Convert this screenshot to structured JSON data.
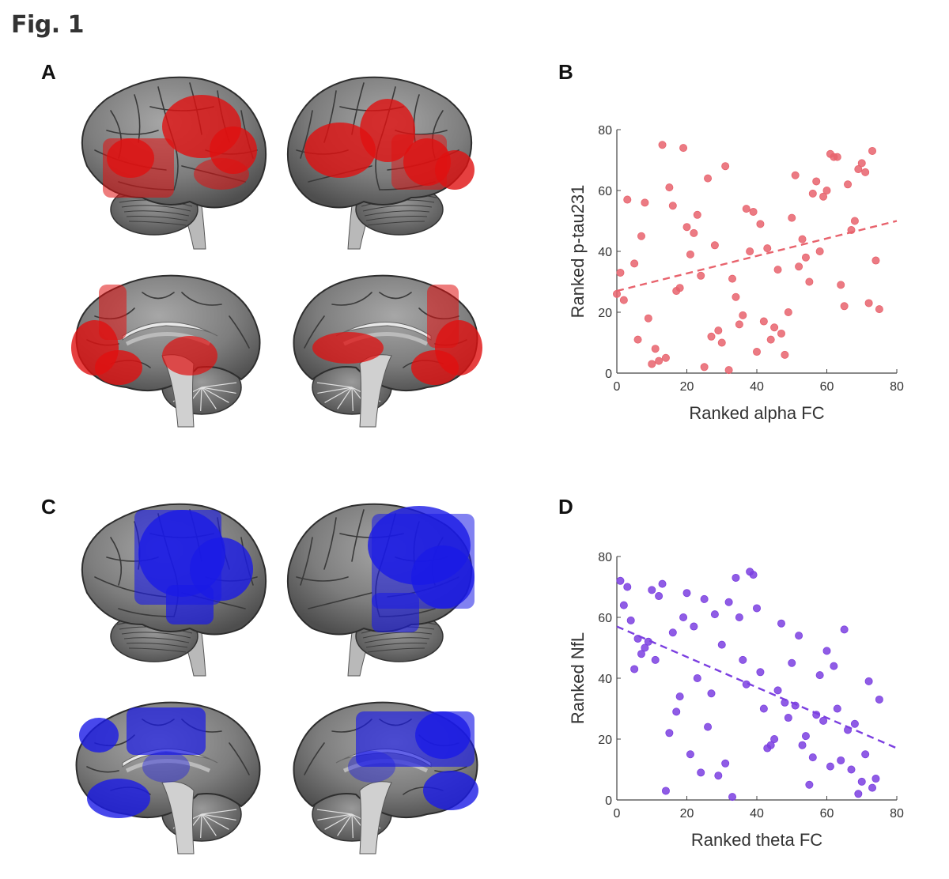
{
  "figure_title": "Fig. 1",
  "panels": {
    "a": {
      "letter": "A",
      "overlay_color": "#e01010"
    },
    "b": {
      "letter": "B"
    },
    "c": {
      "letter": "C",
      "overlay_color": "#1a1ae6"
    },
    "d": {
      "letter": "D"
    }
  },
  "chart_data": [
    {
      "type": "scatter",
      "panel": "B",
      "xlabel": "Ranked alpha FC",
      "ylabel": "Ranked p-tau231",
      "xlim": [
        0,
        80
      ],
      "ylim": [
        0,
        80
      ],
      "xticks": [
        0,
        20,
        40,
        60,
        80
      ],
      "yticks": [
        0,
        20,
        40,
        60,
        80
      ],
      "grid": false,
      "color": "#e8636d",
      "fit_line": {
        "x": [
          0,
          80
        ],
        "y": [
          27,
          50
        ],
        "style": "dashed"
      },
      "points": [
        [
          0,
          26
        ],
        [
          1,
          33
        ],
        [
          2,
          24
        ],
        [
          3,
          57
        ],
        [
          5,
          36
        ],
        [
          6,
          11
        ],
        [
          7,
          45
        ],
        [
          8,
          56
        ],
        [
          9,
          18
        ],
        [
          10,
          3
        ],
        [
          11,
          8
        ],
        [
          12,
          4
        ],
        [
          13,
          75
        ],
        [
          14,
          5
        ],
        [
          15,
          61
        ],
        [
          16,
          55
        ],
        [
          17,
          27
        ],
        [
          18,
          28
        ],
        [
          19,
          74
        ],
        [
          20,
          48
        ],
        [
          21,
          39
        ],
        [
          22,
          46
        ],
        [
          23,
          52
        ],
        [
          24,
          32
        ],
        [
          25,
          2
        ],
        [
          26,
          64
        ],
        [
          27,
          12
        ],
        [
          28,
          42
        ],
        [
          29,
          14
        ],
        [
          30,
          10
        ],
        [
          31,
          68
        ],
        [
          32,
          1
        ],
        [
          33,
          31
        ],
        [
          34,
          25
        ],
        [
          35,
          16
        ],
        [
          36,
          19
        ],
        [
          37,
          54
        ],
        [
          38,
          40
        ],
        [
          39,
          53
        ],
        [
          40,
          7
        ],
        [
          41,
          49
        ],
        [
          42,
          17
        ],
        [
          43,
          41
        ],
        [
          44,
          11
        ],
        [
          45,
          15
        ],
        [
          46,
          34
        ],
        [
          47,
          13
        ],
        [
          48,
          6
        ],
        [
          49,
          20
        ],
        [
          50,
          51
        ],
        [
          51,
          65
        ],
        [
          52,
          35
        ],
        [
          53,
          44
        ],
        [
          54,
          38
        ],
        [
          55,
          30
        ],
        [
          56,
          59
        ],
        [
          57,
          63
        ],
        [
          58,
          40
        ],
        [
          59,
          58
        ],
        [
          60,
          60
        ],
        [
          61,
          72
        ],
        [
          62,
          71
        ],
        [
          63,
          71
        ],
        [
          64,
          29
        ],
        [
          65,
          22
        ],
        [
          66,
          62
        ],
        [
          67,
          47
        ],
        [
          68,
          50
        ],
        [
          69,
          67
        ],
        [
          70,
          69
        ],
        [
          71,
          66
        ],
        [
          72,
          23
        ],
        [
          73,
          73
        ],
        [
          74,
          37
        ],
        [
          75,
          21
        ]
      ]
    },
    {
      "type": "scatter",
      "panel": "D",
      "xlabel": "Ranked theta FC",
      "ylabel": "Ranked NfL",
      "xlim": [
        0,
        80
      ],
      "ylim": [
        0,
        80
      ],
      "xticks": [
        0,
        20,
        40,
        60,
        80
      ],
      "yticks": [
        0,
        20,
        40,
        60,
        80
      ],
      "grid": false,
      "color": "#7b3fe0",
      "fit_line": {
        "x": [
          0,
          80
        ],
        "y": [
          57,
          17
        ],
        "style": "dashed"
      },
      "points": [
        [
          1,
          72
        ],
        [
          2,
          64
        ],
        [
          3,
          70
        ],
        [
          4,
          59
        ],
        [
          5,
          43
        ],
        [
          6,
          53
        ],
        [
          7,
          48
        ],
        [
          8,
          50
        ],
        [
          9,
          52
        ],
        [
          10,
          69
        ],
        [
          11,
          46
        ],
        [
          12,
          67
        ],
        [
          13,
          71
        ],
        [
          14,
          3
        ],
        [
          15,
          22
        ],
        [
          16,
          55
        ],
        [
          17,
          29
        ],
        [
          18,
          34
        ],
        [
          19,
          60
        ],
        [
          20,
          68
        ],
        [
          21,
          15
        ],
        [
          22,
          57
        ],
        [
          23,
          40
        ],
        [
          24,
          9
        ],
        [
          25,
          66
        ],
        [
          26,
          24
        ],
        [
          27,
          35
        ],
        [
          28,
          61
        ],
        [
          29,
          8
        ],
        [
          30,
          51
        ],
        [
          31,
          12
        ],
        [
          32,
          65
        ],
        [
          33,
          1
        ],
        [
          34,
          73
        ],
        [
          35,
          60
        ],
        [
          36,
          46
        ],
        [
          37,
          38
        ],
        [
          38,
          75
        ],
        [
          39,
          74
        ],
        [
          40,
          63
        ],
        [
          41,
          42
        ],
        [
          42,
          30
        ],
        [
          43,
          17
        ],
        [
          44,
          18
        ],
        [
          45,
          20
        ],
        [
          46,
          36
        ],
        [
          47,
          58
        ],
        [
          48,
          32
        ],
        [
          49,
          27
        ],
        [
          50,
          45
        ],
        [
          51,
          31
        ],
        [
          52,
          54
        ],
        [
          53,
          18
        ],
        [
          54,
          21
        ],
        [
          55,
          5
        ],
        [
          56,
          14
        ],
        [
          57,
          28
        ],
        [
          58,
          41
        ],
        [
          59,
          26
        ],
        [
          60,
          49
        ],
        [
          61,
          11
        ],
        [
          62,
          44
        ],
        [
          63,
          30
        ],
        [
          64,
          13
        ],
        [
          65,
          56
        ],
        [
          66,
          23
        ],
        [
          67,
          10
        ],
        [
          68,
          25
        ],
        [
          69,
          2
        ],
        [
          70,
          6
        ],
        [
          71,
          15
        ],
        [
          72,
          39
        ],
        [
          73,
          4
        ],
        [
          74,
          7
        ],
        [
          75,
          33
        ]
      ]
    }
  ]
}
